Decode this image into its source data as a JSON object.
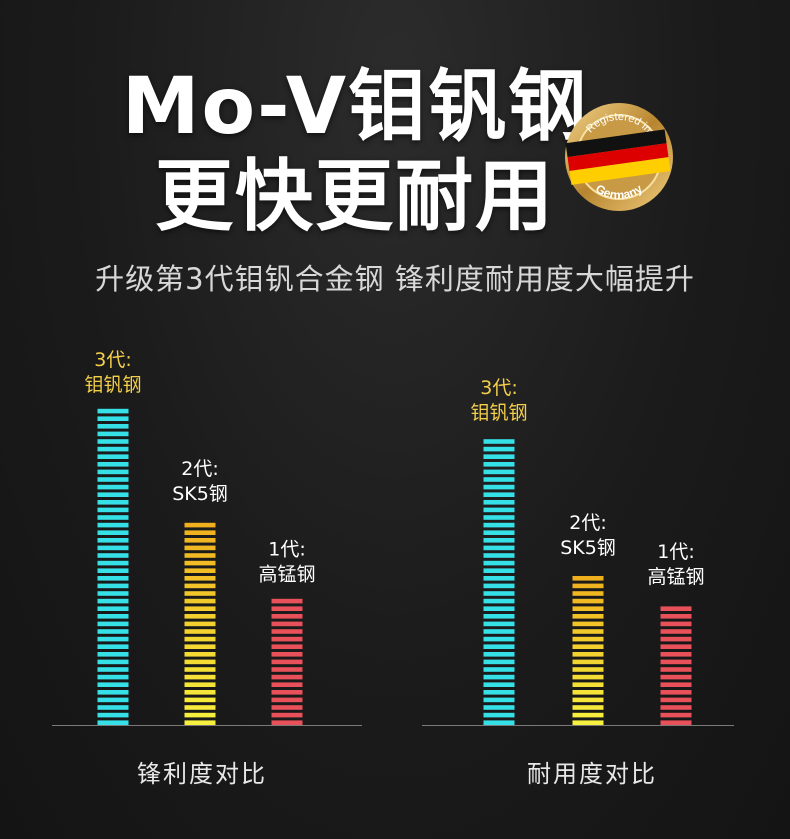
{
  "header": {
    "title_line1": "Mo-V钼钒钢",
    "title_line2": "更快更耐用",
    "subtitle": "升级第3代钼钒合金钢 锋利度耐用度大幅提升"
  },
  "badge": {
    "text_top": "Registered in",
    "text_bottom": "Germany",
    "colors": [
      "#000000",
      "#dd0000",
      "#ffce00"
    ]
  },
  "chart_data": [
    {
      "type": "bar",
      "title": "锋利度对比",
      "categories": [
        {
          "line1": "3代:",
          "line2": "钼钒钢"
        },
        {
          "line1": "2代:",
          "line2": "SK5钢"
        },
        {
          "line1": "1代:",
          "line2": "高锰钢"
        }
      ],
      "values": [
        100,
        66,
        41
      ],
      "ylim": [
        0,
        100
      ],
      "colors": [
        "#35e0e6",
        "#f6d63c",
        "#e8505a"
      ],
      "label_colors": [
        "#f4cf4a",
        "#ffffff",
        "#ffffff"
      ]
    },
    {
      "type": "bar",
      "title": "耐用度对比",
      "categories": [
        {
          "line1": "3代:",
          "line2": "钼钒钢"
        },
        {
          "line1": "2代:",
          "line2": "SK5钢"
        },
        {
          "line1": "1代:",
          "line2": "高锰钢"
        }
      ],
      "values": [
        100,
        54,
        44
      ],
      "ylim": [
        0,
        100
      ],
      "colors": [
        "#35e0e6",
        "#f6d63c",
        "#e8505a"
      ],
      "label_colors": [
        "#f4cf4a",
        "#ffffff",
        "#ffffff"
      ]
    }
  ]
}
